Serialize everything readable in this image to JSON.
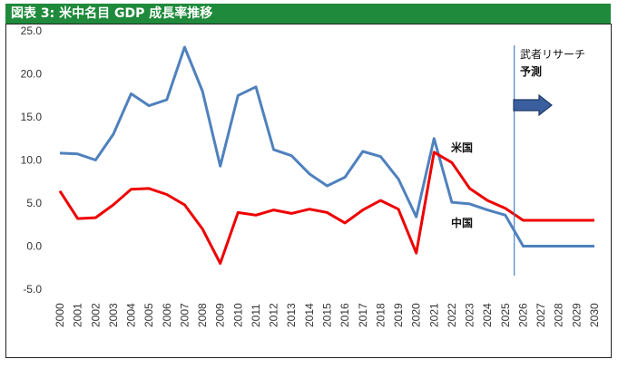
{
  "header": {
    "title": "図表 3: 米中名目 GDP 成長率推移"
  },
  "chart_data": {
    "type": "line",
    "title": "図表 3: 米中名目 GDP 成長率推移",
    "xlabel": "",
    "ylabel": "",
    "ylim": [
      -5.0,
      25.0
    ],
    "yticks": [
      "25.0",
      "20.0",
      "15.0",
      "10.0",
      "5.0",
      "0.0",
      "-5.0"
    ],
    "x": [
      "2000",
      "2001",
      "2002",
      "2003",
      "2004",
      "2005",
      "2006",
      "2007",
      "2008",
      "2009",
      "2010",
      "2011",
      "2012",
      "2013",
      "2014",
      "2015",
      "2016",
      "2017",
      "2018",
      "2019",
      "2020",
      "2021",
      "2022",
      "2023",
      "2024",
      "2025",
      "2026",
      "2027",
      "2028",
      "2029",
      "2030"
    ],
    "series": [
      {
        "name": "中国",
        "color": "#4f81bd",
        "values": [
          10.8,
          10.7,
          10.0,
          13.0,
          17.7,
          16.3,
          17.0,
          23.1,
          18.0,
          9.3,
          17.5,
          18.5,
          11.2,
          10.5,
          8.4,
          7.0,
          8.0,
          11.0,
          10.4,
          7.8,
          3.4,
          12.5,
          5.1,
          4.9,
          4.2,
          3.6,
          0.0,
          0.0,
          0.0,
          0.0,
          0.0
        ]
      },
      {
        "name": "米国",
        "color": "#ee0000",
        "values": [
          6.4,
          3.2,
          3.3,
          4.8,
          6.6,
          6.7,
          6.0,
          4.8,
          2.0,
          -2.0,
          3.9,
          3.6,
          4.2,
          3.8,
          4.3,
          3.9,
          2.7,
          4.2,
          5.3,
          4.3,
          -0.8,
          10.9,
          9.7,
          6.7,
          5.3,
          4.4,
          3.0,
          3.0,
          3.0,
          3.0,
          3.0
        ]
      }
    ],
    "annotations": {
      "forecast_label_line1": "武者リサーチ",
      "forecast_label_line2": "予測",
      "forecast_start_x": 2025.5,
      "us_label": "米国",
      "china_label": "中国"
    }
  }
}
